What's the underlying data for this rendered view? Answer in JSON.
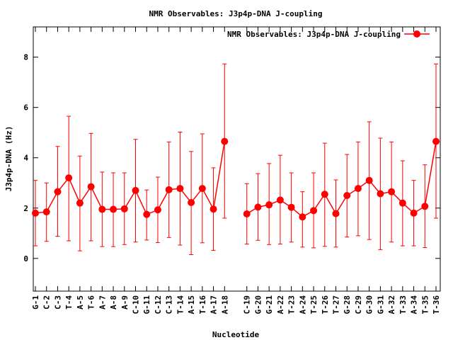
{
  "chart_data": {
    "type": "line",
    "title": "NMR Observables: J3p4p-DNA J-coupling",
    "xlabel": "Nucleotide",
    "ylabel": "J3p4p-DNA (Hz)",
    "ylim": [
      -1.3,
      9.2
    ],
    "yticks": [
      0,
      2,
      4,
      6,
      8
    ],
    "legend_position": "top-right",
    "grid": false,
    "series": [
      {
        "name": "NMR Observables: J3p4p-DNA J-coupling",
        "color": "#ff0000",
        "categories": [
          "G-1",
          "C-2",
          "C-3",
          "T-4",
          "A-5",
          "T-6",
          "A-7",
          "A-8",
          "A-9",
          "C-10",
          "G-11",
          "C-12",
          "C-13",
          "T-14",
          "A-15",
          "T-16",
          "A-17",
          "A-18",
          null,
          "C-19",
          "G-20",
          "G-21",
          "A-22",
          "T-23",
          "A-24",
          "T-25",
          "T-26",
          "T-27",
          "G-28",
          "C-29",
          "G-30",
          "G-31",
          "A-32",
          "T-33",
          "A-34",
          "T-35",
          "T-36"
        ],
        "values": [
          1.8,
          1.85,
          2.65,
          3.2,
          2.2,
          2.85,
          1.95,
          1.95,
          1.97,
          2.7,
          1.75,
          1.93,
          2.73,
          2.78,
          2.22,
          2.78,
          1.96,
          4.65,
          null,
          1.77,
          2.04,
          2.13,
          2.32,
          2.03,
          1.65,
          1.9,
          2.55,
          1.78,
          2.5,
          2.78,
          3.1,
          2.57,
          2.65,
          2.2,
          1.8,
          2.07,
          4.65
        ],
        "error_low": [
          0.5,
          0.68,
          0.88,
          0.7,
          0.3,
          0.7,
          0.47,
          0.47,
          0.55,
          0.65,
          0.73,
          0.63,
          0.83,
          0.53,
          0.15,
          0.62,
          0.32,
          1.6,
          null,
          0.57,
          0.72,
          0.55,
          0.57,
          0.65,
          0.45,
          0.42,
          0.48,
          0.45,
          0.85,
          0.9,
          0.75,
          0.35,
          0.65,
          0.5,
          0.5,
          0.43,
          1.6
        ],
        "error_high": [
          3.1,
          3.0,
          4.45,
          5.65,
          4.07,
          4.97,
          3.43,
          3.4,
          3.4,
          4.73,
          2.72,
          3.23,
          4.63,
          5.02,
          4.25,
          4.95,
          3.6,
          7.73,
          null,
          2.97,
          3.37,
          3.77,
          4.1,
          3.4,
          2.65,
          3.4,
          4.58,
          3.12,
          4.13,
          4.63,
          5.43,
          4.78,
          4.63,
          3.88,
          3.1,
          3.72,
          7.73
        ]
      }
    ]
  }
}
